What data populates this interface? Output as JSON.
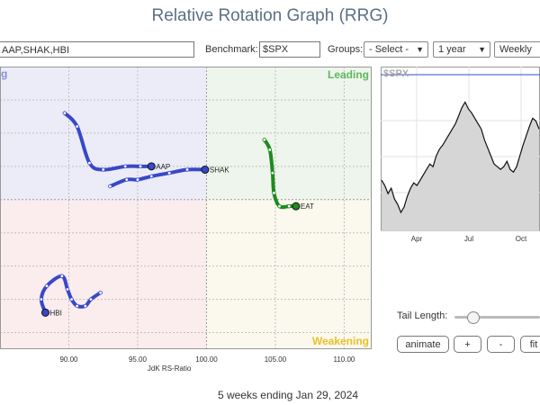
{
  "page": {
    "title": "Relative Rotation Graph (RRG)",
    "footer": "5 weeks ending Jan 29, 2024"
  },
  "controls": {
    "symbols_value": "AAP,SHAK,HBI",
    "benchmark_label": "Benchmark:",
    "benchmark_value": "$SPX",
    "groups_label": "Groups:",
    "groups_value": "- Select -",
    "period_value": "1 year",
    "frequency_value": "Weekly",
    "tail_length_label": "Tail Length:",
    "tail_length_fraction": 0.15,
    "animate_label": "animate",
    "plus_label": "+",
    "minus_label": "-",
    "fit_label": "fit"
  },
  "colors": {
    "leading_bg": "#eef5ec",
    "improving_bg": "#ececf9",
    "lagging_bg": "#fbecee",
    "weakening_bg": "#fbf9ee",
    "leading_text": "#5cb85c",
    "weakening_text": "#e6c229",
    "blue_series": "#3848c8",
    "green_series": "#1f8a1f"
  },
  "chart_data": [
    {
      "type": "scatter",
      "subtype": "relative-rotation-graph",
      "xlabel": "JdK RS-Ratio",
      "xlim": [
        85,
        112
      ],
      "ylim": [
        95.5,
        104
      ],
      "xticks": [
        90,
        95,
        100,
        105,
        110
      ],
      "quadrant_center": [
        100,
        100
      ],
      "quadrants": {
        "top_left": "Improving",
        "top_right": "Leading",
        "bottom_right": "Weakening"
      },
      "visible_quadrant_text": {
        "leading": "Leading",
        "weakening": "Weakening",
        "improving_fragment": "g"
      },
      "series": [
        {
          "name": "AAP",
          "color": "blue",
          "points": [
            [
              89.7,
              102.6
            ],
            [
              90.6,
              102.2
            ],
            [
              91.5,
              101.1
            ],
            [
              92.5,
              100.9
            ],
            [
              94.1,
              101.0
            ],
            [
              95.2,
              101.0
            ],
            [
              96.0,
              101.0
            ]
          ]
        },
        {
          "name": "SHAK",
          "color": "blue",
          "points": [
            [
              93.0,
              100.4
            ],
            [
              94.2,
              100.6
            ],
            [
              95.0,
              100.6
            ],
            [
              96.0,
              100.7
            ],
            [
              97.3,
              100.8
            ],
            [
              98.6,
              100.9
            ],
            [
              99.9,
              100.9
            ]
          ]
        },
        {
          "name": "HBI",
          "color": "blue",
          "points": [
            [
              92.3,
              97.2
            ],
            [
              91.6,
              97.0
            ],
            [
              91.2,
              96.8
            ],
            [
              90.6,
              96.8
            ],
            [
              90.2,
              97.0
            ],
            [
              89.9,
              97.3
            ],
            [
              89.5,
              97.7
            ],
            [
              88.4,
              97.4
            ],
            [
              88.0,
              97.0
            ],
            [
              88.3,
              96.6
            ]
          ]
        },
        {
          "name": "EAT",
          "color": "green",
          "points": [
            [
              104.2,
              101.8
            ],
            [
              104.6,
              101.5
            ],
            [
              104.8,
              100.8
            ],
            [
              104.9,
              100.2
            ],
            [
              105.3,
              99.8
            ],
            [
              106.0,
              99.8
            ],
            [
              106.5,
              99.8
            ]
          ]
        }
      ]
    },
    {
      "type": "area",
      "title": "$SPX",
      "xticks": [
        "Apr",
        "Jul",
        "Oct"
      ],
      "values": [
        62,
        58,
        52,
        56,
        48,
        44,
        38,
        42,
        50,
        56,
        60,
        58,
        62,
        66,
        70,
        74,
        72,
        80,
        85,
        88,
        92,
        96,
        100,
        104,
        110,
        116,
        120,
        115,
        112,
        108,
        104,
        100,
        92,
        86,
        80,
        74,
        72,
        70,
        72,
        76,
        70,
        68,
        72,
        80,
        88,
        95,
        102,
        108,
        106,
        100
      ]
    }
  ]
}
